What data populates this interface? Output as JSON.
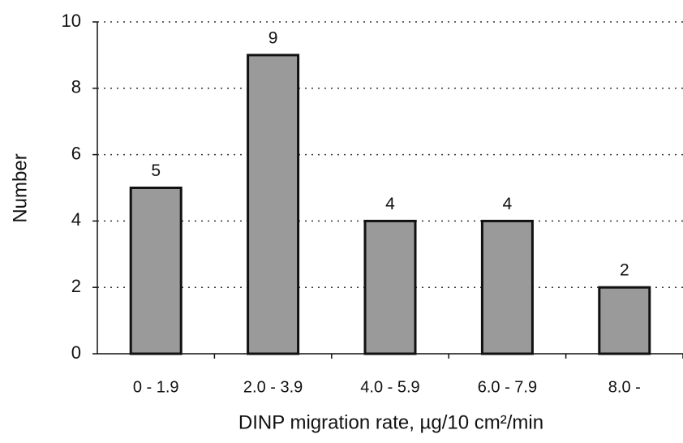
{
  "chart_data": {
    "type": "bar",
    "categories": [
      "0 - 1.9",
      "2.0 - 3.9",
      "4.0 - 5.9",
      "6.0 - 7.9",
      "8.0 -"
    ],
    "values": [
      5,
      9,
      4,
      4,
      2
    ],
    "color": "#9a9a9a",
    "xlabel": "DINP migration rate, µg/10 cm²/min",
    "ylabel": "Number",
    "ylim": [
      0,
      10
    ],
    "yticks": [
      0,
      2,
      4,
      6,
      8,
      10
    ],
    "grid": true
  }
}
